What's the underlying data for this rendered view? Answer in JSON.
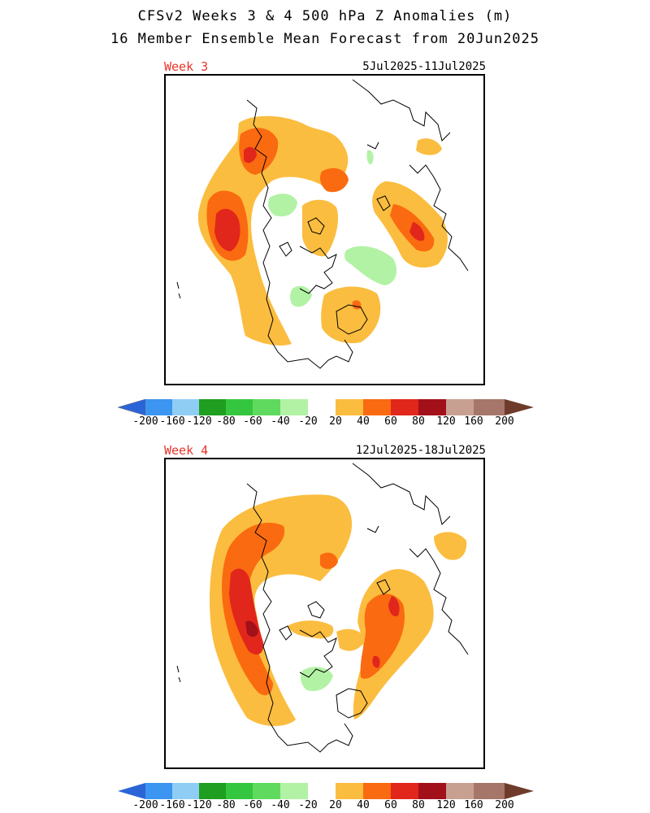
{
  "title_line1": "CFSv2 Weeks 3 & 4 500 hPa Z Anomalies (m)",
  "title_line2": "16 Member Ensemble Mean Forecast from 20Jun2025",
  "panels": [
    {
      "label": "Week 3",
      "dates": "5Jul2025-11Jul2025"
    },
    {
      "label": "Week 4",
      "dates": "12Jul2025-18Jul2025"
    }
  ],
  "colorbar": {
    "labels": [
      "-200",
      "-160",
      "-120",
      "-80",
      "-60",
      "-40",
      "-20",
      "20",
      "40",
      "60",
      "80",
      "120",
      "160",
      "200"
    ],
    "colors": {
      "lt_-200": "#2b64d6",
      "-200_-160": "#3c95f0",
      "-160_-120": "#8fcdf5",
      "-120_-80": "#1f9e1f",
      "-80_-60": "#35c63f",
      "-60_-40": "#5fda5f",
      "-40_-20": "#b2f2a5",
      "-20_20": "#ffffff",
      "20_40": "#fbbd3f",
      "40_60": "#fa6a10",
      "60_80": "#e1261c",
      "80_120": "#a2101a",
      "120_160": "#c8a092",
      "160_200": "#a6766b",
      "gt_200": "#6e3b2a"
    }
  }
}
